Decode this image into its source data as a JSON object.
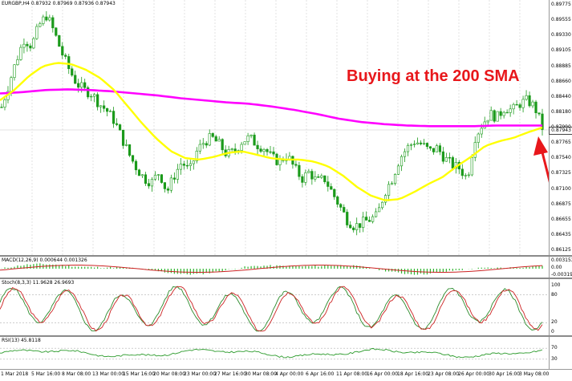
{
  "main_label": "EURGBP,H4  0.87932 0.87969 0.87936 0.87943",
  "macd_label": "MACD(12,26,9) 0.000644 0.001326",
  "stoch_label": "Stoch(8,3,3) 11.9628 26.9693",
  "rsi_label": "RSI(13) 45.8118",
  "annotation": "Buying at the 200 SMA",
  "current_price": "0.87943",
  "price_axis": [
    "0.89775",
    "0.89555",
    "0.89330",
    "0.89105",
    "0.88885",
    "0.88660",
    "0.88440",
    "0.88180",
    "0.87990",
    "0.87765",
    "0.87540",
    "0.87325",
    "0.87100",
    "0.86875",
    "0.86655",
    "0.86435",
    "0.86125"
  ],
  "macd_axis": [
    "0.003153",
    "0.00",
    "-0.00319"
  ],
  "stoch_axis": [
    "100",
    "80",
    "20",
    "0"
  ],
  "rsi_axis": [
    "70",
    "30"
  ],
  "x_labels": [
    "1 Mar 2018",
    "5 Mar 16:00",
    "8 Mar 08:00",
    "13 Mar 00:00",
    "15 Mar 16:00",
    "20 Mar 08:00",
    "23 Mar 00:00",
    "27 Mar 16:00",
    "30 Mar 08:00",
    "4 Apr 00:00",
    "6 Apr 16:00",
    "11 Apr 08:00",
    "16 Apr 00:00",
    "18 Apr 16:00",
    "23 Apr 08:00",
    "26 Apr 00:00",
    "30 Apr 16:00",
    "3 May 08:00"
  ],
  "colors": {
    "bull": "#1a9a1a",
    "bear": "#1a9a1a",
    "sma_fast": "#ffff00",
    "sma_slow": "#ff00ff",
    "annotation": "#e8171b",
    "macd_hist": "#2db52d",
    "macd_signal": "#cc2222",
    "stoch_main": "#cc2222",
    "stoch_signal": "#2a8a2a",
    "rsi": "#2a9a2a"
  },
  "chart_data": {
    "type": "candlestick",
    "symbol": "EURGBP",
    "timeframe": "H4",
    "ylim": [
      0.86125,
      0.89775
    ],
    "close_path": [
      0.8825,
      0.886,
      0.8895,
      0.8925,
      0.8915,
      0.8945,
      0.896,
      0.8935,
      0.8905,
      0.888,
      0.886,
      0.885,
      0.8845,
      0.883,
      0.882,
      0.8805,
      0.878,
      0.8755,
      0.8735,
      0.872,
      0.8715,
      0.873,
      0.87,
      0.8725,
      0.8745,
      0.873,
      0.876,
      0.8775,
      0.878,
      0.877,
      0.8755,
      0.876,
      0.8775,
      0.878,
      0.877,
      0.8765,
      0.875,
      0.8745,
      0.8755,
      0.8735,
      0.872,
      0.873,
      0.8715,
      0.872,
      0.87,
      0.868,
      0.866,
      0.865,
      0.8655,
      0.866,
      0.8665,
      0.87,
      0.872,
      0.875,
      0.8765,
      0.8775,
      0.877,
      0.876,
      0.8765,
      0.875,
      0.874,
      0.8735,
      0.872,
      0.878,
      0.88,
      0.8815,
      0.881,
      0.8825,
      0.882,
      0.883,
      0.8835,
      0.8825,
      0.8795
    ],
    "sma50": [
      0.8835,
      0.885,
      0.887,
      0.8885,
      0.889,
      0.8888,
      0.888,
      0.8868,
      0.885,
      0.8825,
      0.88,
      0.8778,
      0.876,
      0.875,
      0.8748,
      0.8752,
      0.8758,
      0.876,
      0.8755,
      0.875,
      0.8748,
      0.8748,
      0.8745,
      0.8738,
      0.8725,
      0.8708,
      0.8695,
      0.8688,
      0.869,
      0.87,
      0.8712,
      0.8722,
      0.8738,
      0.8752,
      0.8768,
      0.8775,
      0.878,
      0.8788,
      0.8795
    ],
    "sma200": [
      0.8845,
      0.8847,
      0.885,
      0.8851,
      0.885,
      0.8848,
      0.8845,
      0.8842,
      0.8838,
      0.8835,
      0.8832,
      0.883,
      0.8826,
      0.8821,
      0.8815,
      0.8808,
      0.8803,
      0.88,
      0.8798,
      0.8797,
      0.8797,
      0.8797,
      0.8798,
      0.8798,
      0.8798
    ]
  }
}
